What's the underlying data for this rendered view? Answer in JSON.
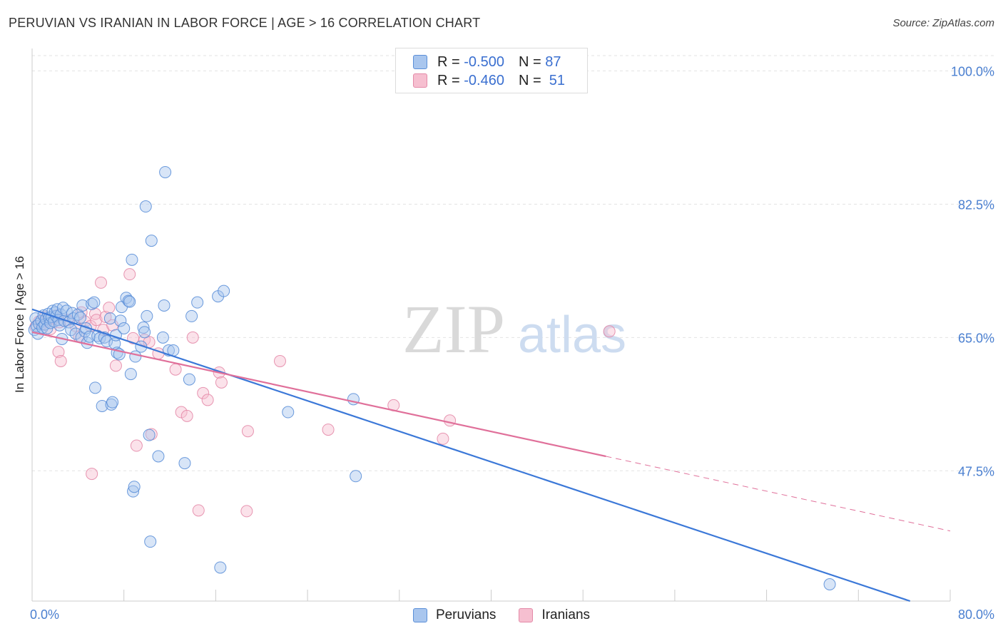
{
  "chart_data": {
    "type": "scatter",
    "title": "PERUVIAN VS IRANIAN IN LABOR FORCE | AGE > 16 CORRELATION CHART",
    "source": "Source: ZipAtlas.com",
    "xlabel": "",
    "ylabel": "In Labor Force | Age > 16",
    "xlim": [
      0,
      80
    ],
    "ylim": [
      30.4,
      102
    ],
    "y_ticks": [
      {
        "value": 47.5,
        "label": "47.5%"
      },
      {
        "value": 65.0,
        "label": "65.0%"
      },
      {
        "value": 82.5,
        "label": "82.5%"
      },
      {
        "value": 100.0,
        "label": "100.0%"
      }
    ],
    "x_tick_labels": {
      "min": "0.0%",
      "max": "80.0%"
    },
    "grid": true,
    "watermark": {
      "zip": "ZIP",
      "atlas": "atlas"
    },
    "legend": {
      "r_label": "R =",
      "n_label": "N =",
      "entries": [
        {
          "name": "Peruvians",
          "r": "-0.500",
          "n": "87"
        },
        {
          "name": "Iranians",
          "r": "-0.460",
          "n": "51"
        }
      ]
    },
    "colors": {
      "peruvians_fill": "#a9c6ee",
      "peruvians_stroke": "#5b8fd8",
      "peruvians_line": "#3b78d8",
      "iranians_fill": "#f6bfd0",
      "iranians_stroke": "#e48aa8",
      "iranians_line": "#e0709a",
      "tick_text": "#4a7fd0",
      "grid": "#e3e3e3"
    },
    "series": [
      {
        "name": "Peruvians",
        "trend": {
          "x0": 0,
          "y0": 68.7,
          "x1": 76.5,
          "y1": 30.4
        },
        "points": [
          [
            0.2,
            66
          ],
          [
            0.3,
            67.5
          ],
          [
            0.4,
            66.5
          ],
          [
            0.5,
            65.5
          ],
          [
            0.6,
            66.8
          ],
          [
            0.8,
            67.2
          ],
          [
            0.9,
            66.3
          ],
          [
            1.0,
            67.9
          ],
          [
            1.1,
            66.7
          ],
          [
            1.2,
            67.4
          ],
          [
            1.3,
            66.2
          ],
          [
            1.4,
            68.1
          ],
          [
            1.5,
            67.6
          ],
          [
            1.6,
            66.9
          ],
          [
            1.7,
            67.7
          ],
          [
            1.8,
            68.5
          ],
          [
            1.9,
            67.1
          ],
          [
            2.0,
            68.3
          ],
          [
            2.1,
            67.8
          ],
          [
            2.2,
            68.7
          ],
          [
            2.3,
            67.3
          ],
          [
            2.4,
            66.6
          ],
          [
            2.5,
            68.0
          ],
          [
            2.6,
            64.8
          ],
          [
            2.7,
            68.9
          ],
          [
            2.8,
            67.2
          ],
          [
            3.0,
            68.5
          ],
          [
            3.2,
            67.0
          ],
          [
            3.4,
            66.0
          ],
          [
            3.5,
            68.2
          ],
          [
            3.6,
            67.5
          ],
          [
            3.8,
            65.5
          ],
          [
            4.0,
            68.0
          ],
          [
            4.2,
            67.6
          ],
          [
            4.3,
            65.0
          ],
          [
            4.4,
            69.2
          ],
          [
            4.6,
            65.8
          ],
          [
            4.7,
            66.2
          ],
          [
            4.8,
            64.3
          ],
          [
            5.0,
            65.1
          ],
          [
            5.2,
            69.4
          ],
          [
            5.4,
            69.6
          ],
          [
            5.5,
            58.4
          ],
          [
            5.7,
            65.2
          ],
          [
            5.9,
            64.9
          ],
          [
            6.1,
            56.0
          ],
          [
            6.3,
            65.0
          ],
          [
            6.5,
            64.5
          ],
          [
            6.8,
            67.5
          ],
          [
            6.9,
            56.2
          ],
          [
            7.0,
            56.5
          ],
          [
            7.2,
            64.2
          ],
          [
            7.3,
            65.3
          ],
          [
            7.4,
            63.0
          ],
          [
            7.6,
            62.8
          ],
          [
            7.7,
            67.2
          ],
          [
            7.8,
            69.0
          ],
          [
            8.0,
            66.2
          ],
          [
            8.2,
            70.2
          ],
          [
            8.4,
            69.8
          ],
          [
            8.5,
            69.7
          ],
          [
            8.6,
            60.2
          ],
          [
            8.7,
            75.2
          ],
          [
            8.8,
            44.8
          ],
          [
            8.9,
            45.4
          ],
          [
            9.0,
            62.5
          ],
          [
            9.5,
            63.8
          ],
          [
            9.7,
            66.3
          ],
          [
            9.8,
            65.7
          ],
          [
            9.9,
            82.2
          ],
          [
            10.0,
            67.8
          ],
          [
            10.2,
            52.2
          ],
          [
            10.3,
            38.2
          ],
          [
            10.4,
            77.7
          ],
          [
            11.0,
            49.4
          ],
          [
            11.4,
            65.0
          ],
          [
            11.5,
            69.2
          ],
          [
            11.6,
            86.7
          ],
          [
            11.9,
            63.3
          ],
          [
            12.3,
            63.3
          ],
          [
            13.3,
            48.5
          ],
          [
            13.7,
            59.5
          ],
          [
            13.9,
            67.8
          ],
          [
            14.4,
            69.6
          ],
          [
            16.2,
            70.4
          ],
          [
            16.7,
            71.1
          ],
          [
            16.4,
            34.8
          ],
          [
            22.3,
            55.2
          ],
          [
            28.0,
            56.9
          ],
          [
            28.2,
            46.8
          ],
          [
            69.5,
            32.6
          ]
        ]
      },
      {
        "name": "Iranians",
        "trend": {
          "x0": 0,
          "y0": 65.7,
          "x1": 50,
          "y1": 49.4
        },
        "trend_ext": {
          "x0": 50,
          "y0": 49.4,
          "x1": 80,
          "y1": 39.6
        },
        "points": [
          [
            0.3,
            66.4
          ],
          [
            0.6,
            67.1
          ],
          [
            0.9,
            66.8
          ],
          [
            1.1,
            67.7
          ],
          [
            1.3,
            67.2
          ],
          [
            1.6,
            66.1
          ],
          [
            1.9,
            67.5
          ],
          [
            2.1,
            67.9
          ],
          [
            2.3,
            63.1
          ],
          [
            2.4,
            67.0
          ],
          [
            2.5,
            61.9
          ],
          [
            3.1,
            67.3
          ],
          [
            3.8,
            66.5
          ],
          [
            4.1,
            65.1
          ],
          [
            4.3,
            68.3
          ],
          [
            4.6,
            67.1
          ],
          [
            5.1,
            66.5
          ],
          [
            5.2,
            47.1
          ],
          [
            5.5,
            68.1
          ],
          [
            5.6,
            67.3
          ],
          [
            6.0,
            72.2
          ],
          [
            6.2,
            66.0
          ],
          [
            6.4,
            67.7
          ],
          [
            6.7,
            68.9
          ],
          [
            7.0,
            66.6
          ],
          [
            7.3,
            61.3
          ],
          [
            8.5,
            73.3
          ],
          [
            8.8,
            64.9
          ],
          [
            9.1,
            50.8
          ],
          [
            9.8,
            64.7
          ],
          [
            10.2,
            64.4
          ],
          [
            10.4,
            52.3
          ],
          [
            11.0,
            62.9
          ],
          [
            12.5,
            60.8
          ],
          [
            13.0,
            55.2
          ],
          [
            13.5,
            54.7
          ],
          [
            14.0,
            65.0
          ],
          [
            14.5,
            42.3
          ],
          [
            14.9,
            57.7
          ],
          [
            15.3,
            56.8
          ],
          [
            16.3,
            60.4
          ],
          [
            16.5,
            59.1
          ],
          [
            18.7,
            42.2
          ],
          [
            18.8,
            52.7
          ],
          [
            21.6,
            61.9
          ],
          [
            25.8,
            52.9
          ],
          [
            31.5,
            56.1
          ],
          [
            35.8,
            51.7
          ],
          [
            36.4,
            54.1
          ],
          [
            50.3,
            65.8
          ]
        ]
      }
    ]
  }
}
